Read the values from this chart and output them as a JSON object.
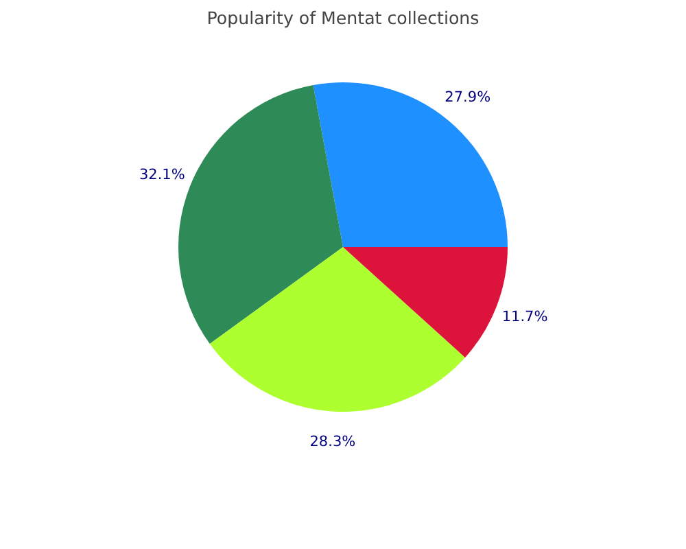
{
  "chart_data": {
    "type": "pie",
    "title": "Popularity of Mentat collections",
    "categories": [
      null,
      null,
      null,
      null
    ],
    "values": [
      27.9,
      32.1,
      28.3,
      11.7
    ],
    "colors": [
      "#1e90ff",
      "#2e8b57",
      "#adff2f",
      "#dc143c"
    ],
    "value_labels": [
      "27.9%",
      "32.1%",
      "28.3%",
      "11.7%"
    ]
  }
}
